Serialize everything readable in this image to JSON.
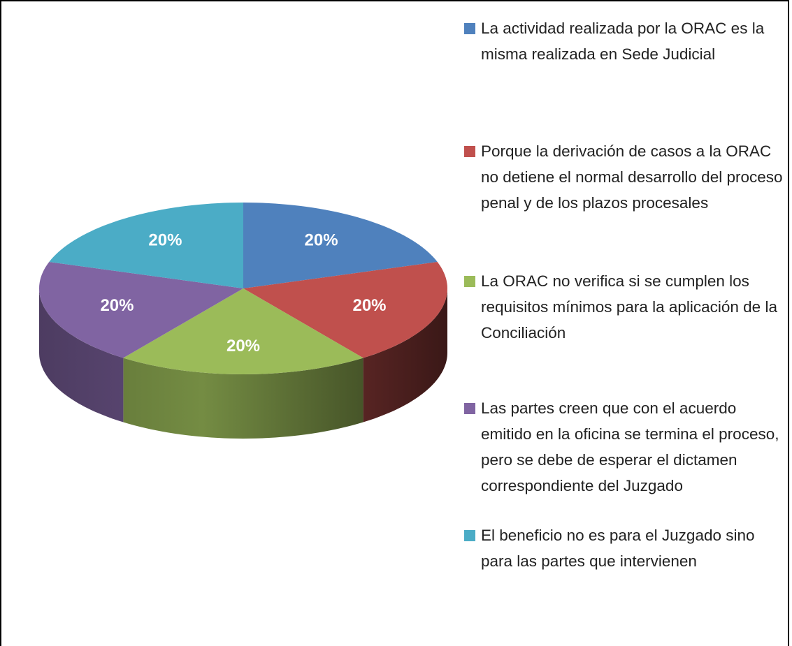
{
  "chart_data": {
    "type": "pie3d",
    "categories": [
      "La actividad realizada por la ORAC es la misma realizada en Sede Judicial",
      "Porque la derivación de casos a la ORAC no detiene el normal desarrollo del proceso penal y de los plazos procesales",
      "La ORAC no verifica si se cumplen los requisitos mínimos para la aplicación de la Conciliación",
      "Las partes creen que con el acuerdo emitido en la oficina se termina el proceso, pero se debe de esperar el dictamen correspondiente del Juzgado",
      "El beneficio no es para el Juzgado sino para las partes que intervienen"
    ],
    "values": [
      20,
      20,
      20,
      20,
      20
    ],
    "value_labels": [
      "20%",
      "20%",
      "20%",
      "20%",
      "20%"
    ],
    "colors": [
      "#4f81bd",
      "#c0504d",
      "#9bbb59",
      "#8064a2",
      "#4bacc6"
    ],
    "legend": "right"
  }
}
